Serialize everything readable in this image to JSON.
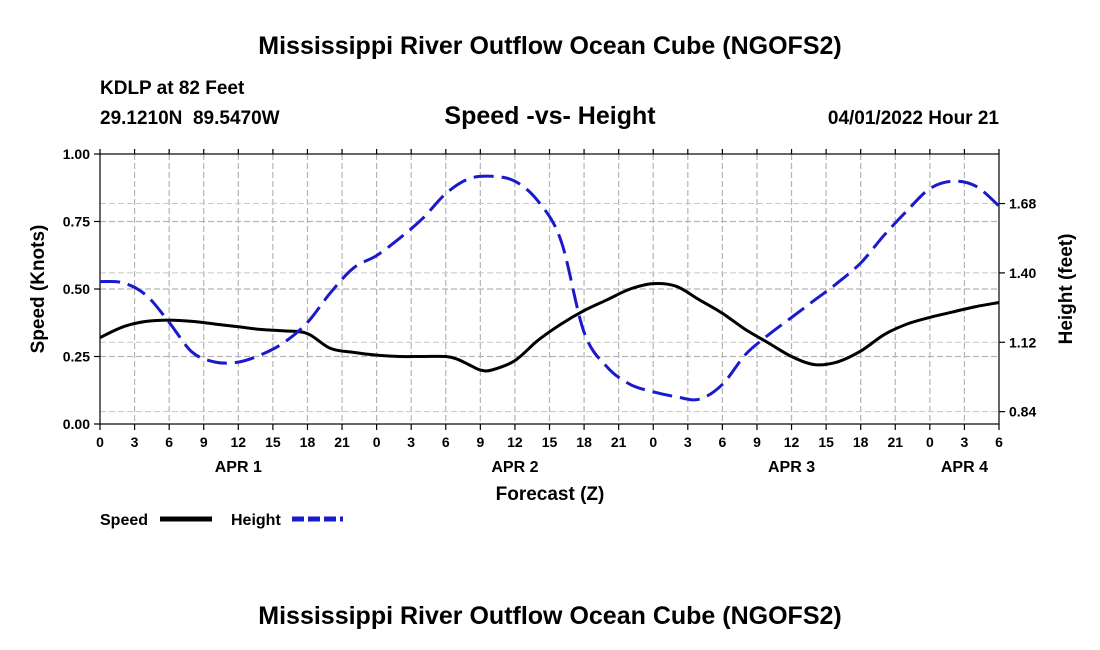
{
  "chart_data": {
    "type": "line",
    "title": "Mississippi River Outflow Ocean Cube (NGOFS2)",
    "station": "KDLP at 82 Feet",
    "location": "29.1210N  89.5470W",
    "subtitle": "Speed -vs- Height",
    "datetime": "04/01/2022 Hour 21",
    "xlabel": "Forecast (Z)",
    "ylabel_left": "Speed (Knots)",
    "ylabel_right": "Height (feet)",
    "x_range_hours": [
      0,
      78
    ],
    "x_tick_labels": [
      "0",
      "3",
      "6",
      "9",
      "12",
      "15",
      "18",
      "21",
      "0",
      "3",
      "6",
      "9",
      "12",
      "15",
      "18",
      "21",
      "0",
      "3",
      "6",
      "9",
      "12",
      "15",
      "18",
      "21",
      "0",
      "3",
      "6"
    ],
    "date_labels": [
      {
        "text": "APR 1",
        "hour": 12
      },
      {
        "text": "APR 2",
        "hour": 36
      },
      {
        "text": "APR 3",
        "hour": 60
      },
      {
        "text": "APR 4",
        "hour": 75
      }
    ],
    "ylim_left": [
      0,
      1
    ],
    "y_ticks_left": [
      "0.00",
      "0.25",
      "0.50",
      "0.75",
      "1.00"
    ],
    "ylim_right": [
      0.79,
      1.88
    ],
    "y_ticks_right": [
      "0.84",
      "1.12",
      "1.40",
      "1.68"
    ],
    "series": [
      {
        "name": "Speed",
        "color": "#000000",
        "axis": "left",
        "style": "solid",
        "x": [
          0,
          2,
          4,
          6,
          8,
          10,
          12,
          14,
          16,
          18,
          20,
          22,
          24,
          26,
          28,
          30,
          31,
          32,
          33,
          34,
          36,
          38,
          40,
          42,
          44,
          46,
          48,
          50,
          52,
          54,
          56,
          58,
          60,
          62,
          64,
          66,
          68,
          70,
          72,
          74,
          76,
          78
        ],
        "values": [
          0.32,
          0.36,
          0.38,
          0.385,
          0.38,
          0.37,
          0.36,
          0.35,
          0.345,
          0.335,
          0.28,
          0.265,
          0.255,
          0.25,
          0.25,
          0.25,
          0.24,
          0.22,
          0.2,
          0.2,
          0.235,
          0.31,
          0.37,
          0.42,
          0.46,
          0.5,
          0.52,
          0.51,
          0.46,
          0.41,
          0.35,
          0.3,
          0.25,
          0.22,
          0.23,
          0.27,
          0.33,
          0.37,
          0.395,
          0.415,
          0.435,
          0.45
        ]
      },
      {
        "name": "Height",
        "color": "#1a1acc",
        "axis": "right",
        "style": "dashed",
        "x": [
          0,
          2,
          4,
          6,
          8,
          10,
          12,
          14,
          16,
          18,
          20,
          22,
          24,
          26,
          28,
          30,
          32,
          34,
          36,
          38,
          40,
          42,
          44,
          46,
          48,
          50,
          52,
          54,
          56,
          58,
          60,
          62,
          64,
          66,
          68,
          70,
          72,
          74,
          76,
          78
        ],
        "values": [
          1.365,
          1.36,
          1.31,
          1.2,
          1.08,
          1.04,
          1.04,
          1.07,
          1.12,
          1.2,
          1.32,
          1.42,
          1.47,
          1.54,
          1.62,
          1.72,
          1.78,
          1.79,
          1.77,
          1.69,
          1.53,
          1.16,
          1.02,
          0.95,
          0.92,
          0.9,
          0.89,
          0.95,
          1.07,
          1.15,
          1.22,
          1.29,
          1.36,
          1.44,
          1.55,
          1.65,
          1.74,
          1.77,
          1.75,
          1.67
        ]
      }
    ],
    "legend": [
      {
        "label": "Speed",
        "color": "#000000",
        "style": "solid"
      },
      {
        "label": "Height",
        "color": "#1a1acc",
        "style": "dashed"
      }
    ],
    "footer_title": "Mississippi River Outflow Ocean Cube (NGOFS2)",
    "grid": true
  }
}
